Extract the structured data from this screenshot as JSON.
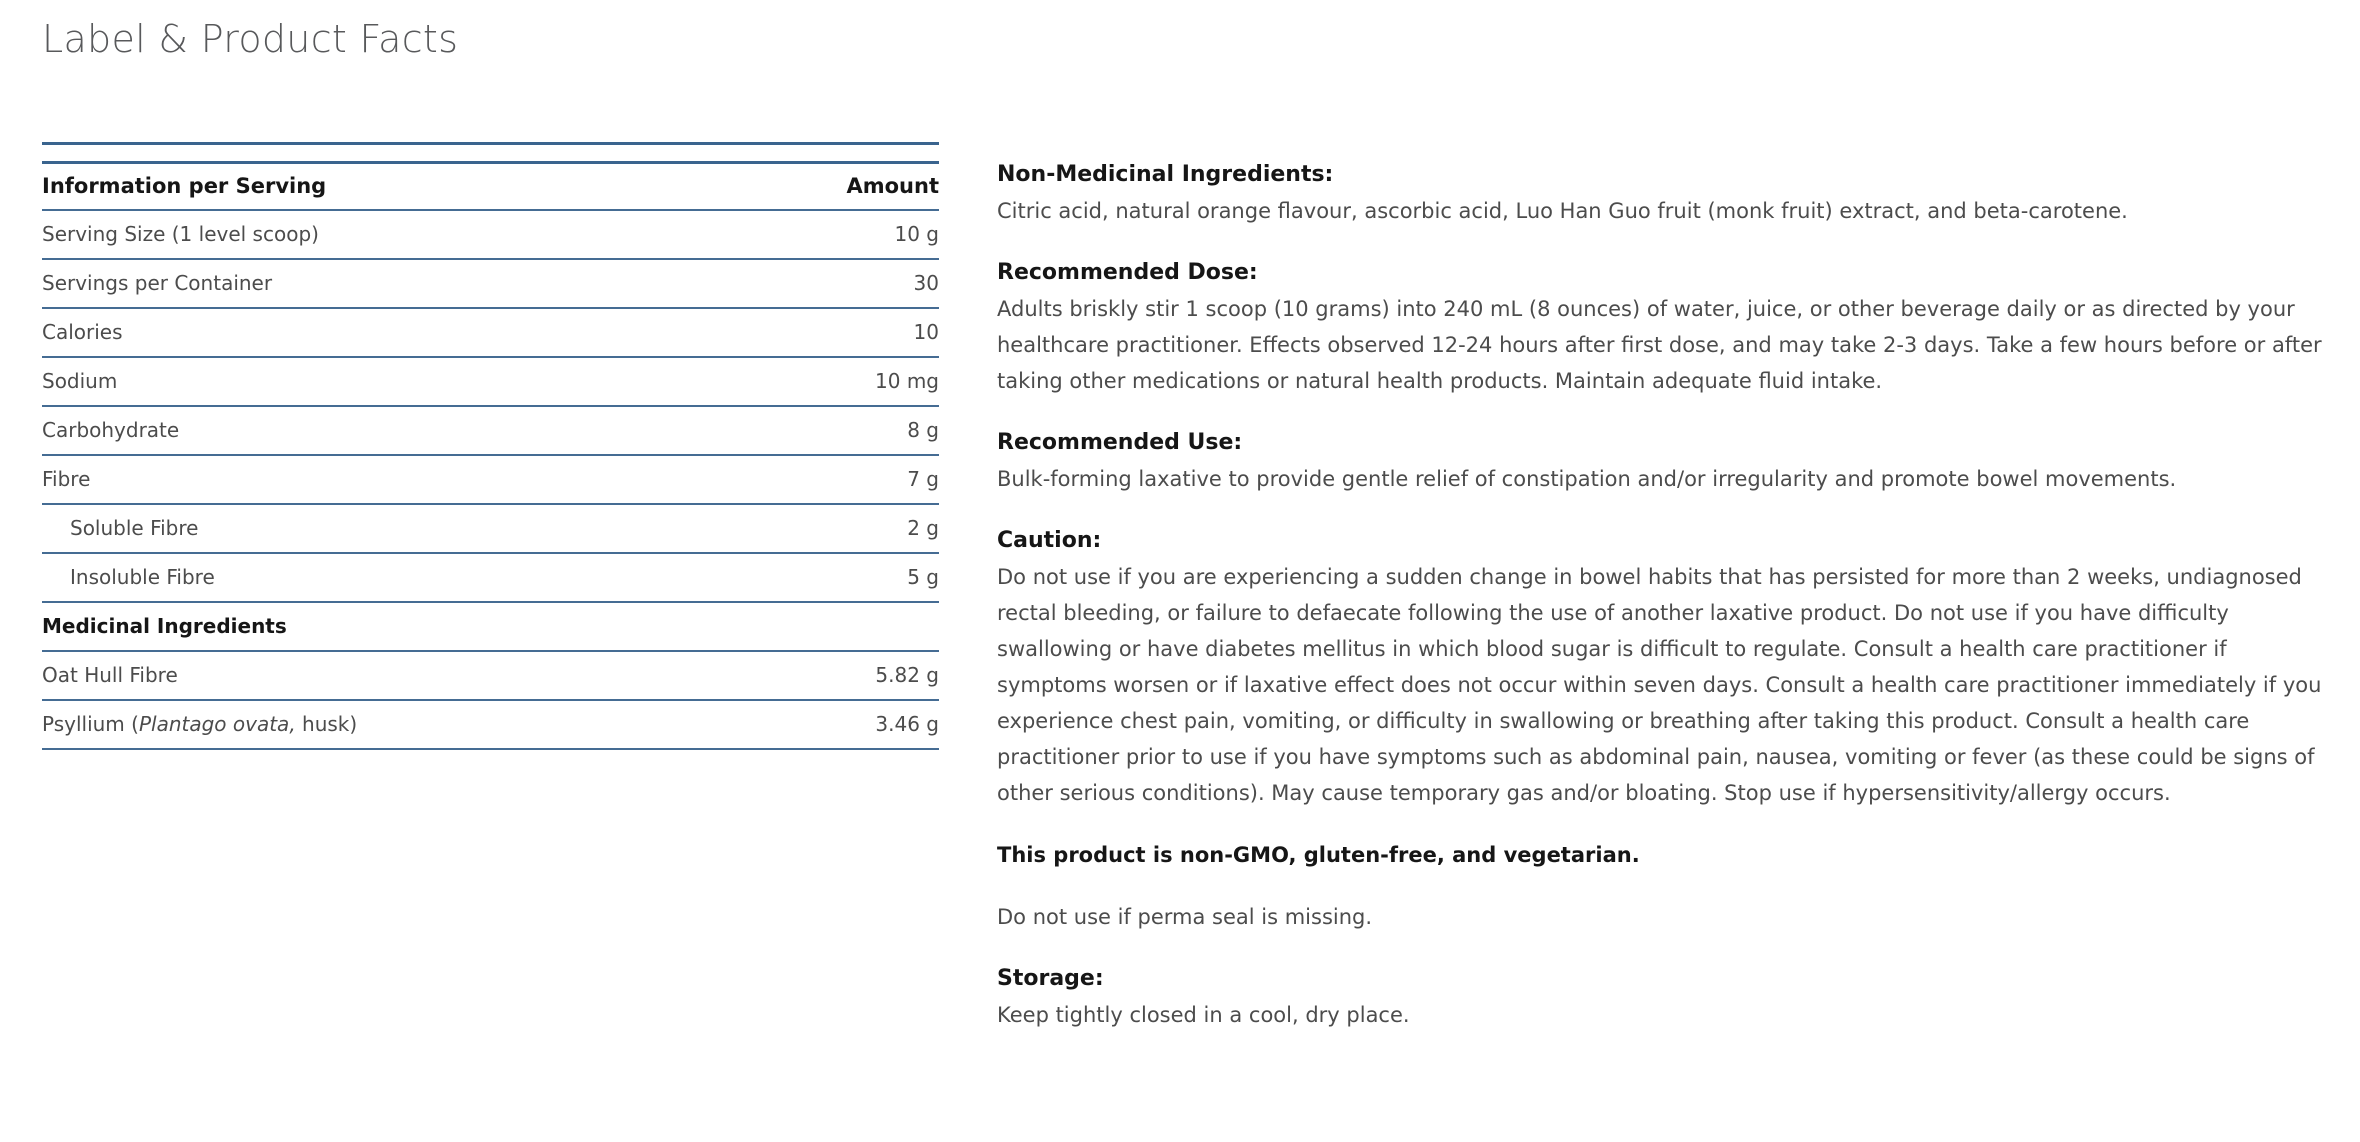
{
  "page": {
    "title": "Label & Product Facts"
  },
  "facts_table": {
    "columns": {
      "info": "Information per Serving",
      "amount": "Amount"
    },
    "rows": [
      {
        "label": "Serving Size (1 level scoop)",
        "amount": "10 g"
      },
      {
        "label": "Servings per Container",
        "amount": "30"
      },
      {
        "label": "Calories",
        "amount": "10"
      },
      {
        "label": "Sodium",
        "amount": "10 mg"
      },
      {
        "label": "Carbohydrate",
        "amount": "8 g"
      },
      {
        "label": "Fibre",
        "amount": "7 g"
      },
      {
        "label": "Soluble Fibre",
        "amount": "2 g",
        "indent": true
      },
      {
        "label": "Insoluble Fibre",
        "amount": "5 g",
        "indent": true
      },
      {
        "label": "Medicinal Ingredients",
        "amount": "",
        "section": true
      },
      {
        "label": "Oat Hull Fibre",
        "amount": "5.82 g"
      },
      {
        "label_prefix": "Psyllium (",
        "label_italic": "Plantago ovata,",
        "label_suffix": " husk)",
        "amount": "3.46 g"
      }
    ]
  },
  "details": {
    "sections": [
      {
        "heading": "Non-Medicinal Ingredients:",
        "body": "Citric acid, natural orange flavour, ascorbic acid, Luo Han Guo fruit (monk fruit) extract, and beta-carotene."
      },
      {
        "heading": "Recommended Dose:",
        "body": "Adults briskly stir 1 scoop (10 grams) into 240 mL (8 ounces) of water, juice, or other beverage daily or as directed by your healthcare practitioner. Effects observed 12-24 hours after first dose, and may take 2-3 days. Take a few hours before or after taking other medications or natural health products. Maintain adequate fluid intake."
      },
      {
        "heading": "Recommended Use:",
        "body": "Bulk-forming laxative to provide gentle relief of constipation and/or irregularity and promote bowel movements."
      },
      {
        "heading": "Caution:",
        "body": "Do not use if you are experiencing a sudden change in bowel habits that has persisted for more than 2 weeks, undiagnosed rectal bleeding, or failure to defaecate following the use of another laxative product. Do not use if you have difficulty swallowing or have diabetes mellitus in which blood sugar is difficult to regulate. Consult a health care practitioner if symptoms worsen or if laxative effect does not occur within seven days. Consult a health care practitioner immediately if you experience chest pain, vomiting, or difficulty in swallowing or breathing after taking this product. Consult a health care practitioner prior to use if you have symptoms such as abdominal pain, nausea, vomiting or fever (as these could be signs of other serious conditions). May cause temporary gas and/or bloating. Stop use if hypersensitivity/allergy occurs."
      }
    ],
    "bold_note": "This product is non-GMO, gluten-free, and vegetarian.",
    "seal_note": "Do not use if perma seal is missing.",
    "storage": {
      "heading": "Storage:",
      "body": "Keep tightly closed in a cool, dry place."
    }
  },
  "appearance": {
    "rule_blue": "#3a648e",
    "rule_blue_light": "#456c93",
    "body_text": "#4c4c4c",
    "heading_text": "#161616",
    "title_text": "#58595b",
    "background": "#ffffff"
  }
}
